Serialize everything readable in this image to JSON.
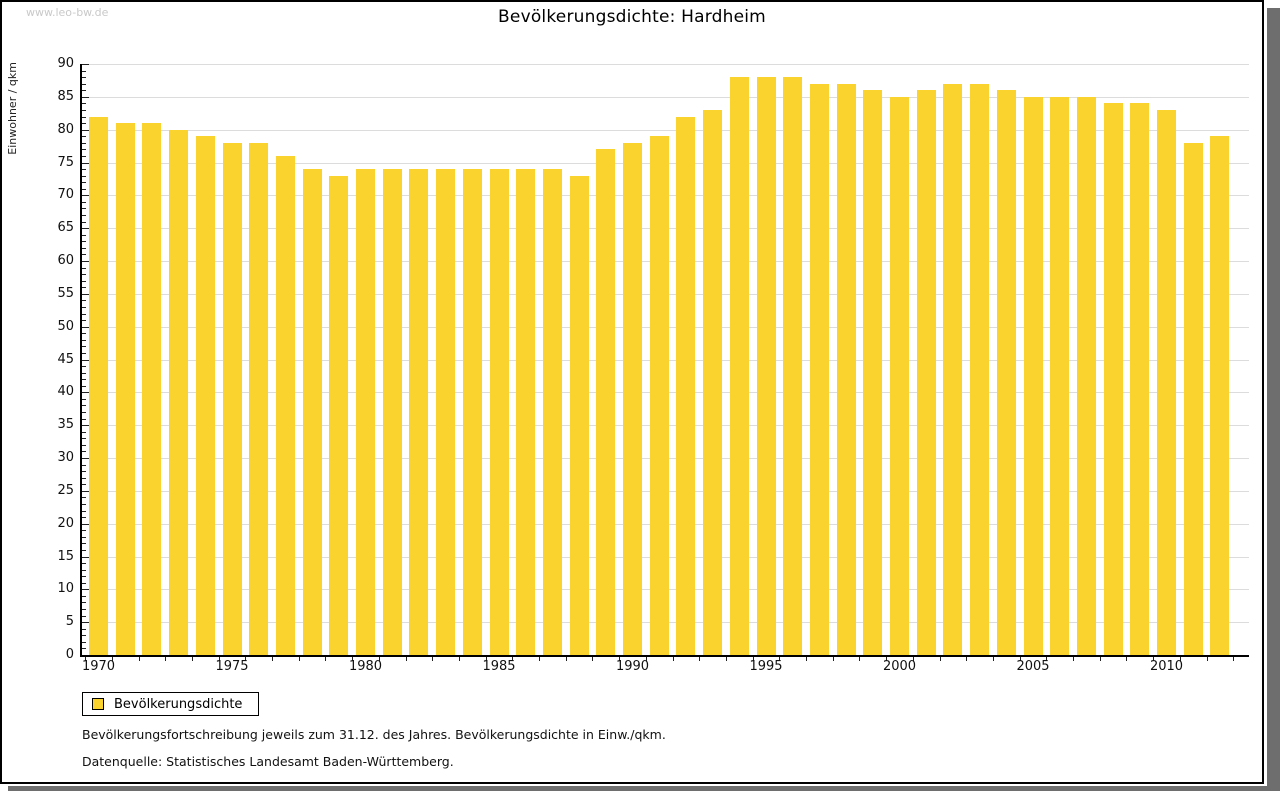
{
  "page": {
    "watermark": "www.leo-bw.de",
    "footnote1": "Bevölkerungsfortschreibung jeweils zum 31.12. des Jahres. Bevölkerungsdichte in Einw./qkm.",
    "footnote2": "Datenquelle: Statistisches Landesamt Baden-Württemberg."
  },
  "legend": {
    "label": "Bevölkerungsdichte",
    "position": "bottom-left"
  },
  "colors": {
    "bar": "#FBD32F",
    "grid": "#DCDCDC",
    "axis": "#000000",
    "watermark": "#C9C9C9",
    "shadow": "#6E6E6E"
  },
  "chart_data": {
    "type": "bar",
    "title": "Bevölkerungsdichte: Hardheim",
    "xlabel": "",
    "ylabel": "Einwohner / qkm",
    "ylim": [
      0,
      90
    ],
    "y_tick_step": 5,
    "y_minor_tick_step": 1,
    "grid": true,
    "legend_entries": [
      "Bevölkerungsdichte"
    ],
    "x_axis_labeled_ticks": [
      "1970",
      "1975",
      "1980",
      "1985",
      "1990",
      "1995",
      "2000",
      "2005",
      "2010"
    ],
    "categories": [
      1970,
      1971,
      1972,
      1973,
      1974,
      1975,
      1976,
      1977,
      1978,
      1979,
      1980,
      1981,
      1982,
      1983,
      1984,
      1985,
      1986,
      1987,
      1988,
      1989,
      1990,
      1991,
      1992,
      1993,
      1994,
      1995,
      1996,
      1997,
      1998,
      1999,
      2000,
      2001,
      2002,
      2003,
      2004,
      2005,
      2006,
      2007,
      2008,
      2009,
      2010,
      2011,
      2012
    ],
    "values": [
      82,
      81,
      81,
      80,
      79,
      78,
      78,
      76,
      74,
      73,
      74,
      74,
      74,
      74,
      74,
      74,
      74,
      74,
      73,
      77,
      78,
      79,
      82,
      83,
      88,
      88,
      88,
      87,
      87,
      86,
      85,
      86,
      87,
      87,
      86,
      85,
      85,
      85,
      84,
      84,
      83,
      78,
      79
    ]
  }
}
